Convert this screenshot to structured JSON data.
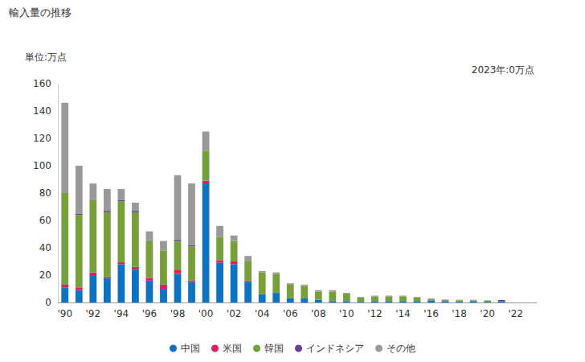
{
  "chart_data": {
    "type": "bar",
    "title": "輸入量の推移",
    "subtitle": "単位:万点",
    "annotations": [
      "2023年:0万点"
    ],
    "stacked": true,
    "grid": false,
    "legend": "bottom",
    "categories": [
      "'90",
      null,
      "'92",
      null,
      "'94",
      null,
      "'96",
      null,
      "'98",
      null,
      "'00",
      null,
      "'02",
      null,
      "'04",
      null,
      "'06",
      null,
      "'08",
      null,
      "'10",
      null,
      "'12",
      null,
      "'14",
      null,
      "'16",
      null,
      "'18",
      null,
      "'20",
      null,
      "'22",
      null
    ],
    "ylim": [
      0,
      160
    ],
    "yticks": [
      0,
      20,
      40,
      60,
      80,
      100,
      120,
      140,
      160
    ],
    "series": [
      {
        "name": "中国",
        "color": "#0b72c4",
        "values": [
          11,
          9,
          20,
          18,
          28,
          24,
          16,
          10,
          21,
          15,
          87,
          29,
          28,
          15,
          6,
          7,
          3,
          3,
          2,
          1,
          1,
          0.5,
          1,
          1,
          1,
          1,
          1.5,
          1,
          0.5,
          1,
          0.5,
          1,
          0,
          0
        ]
      },
      {
        "name": "米国",
        "color": "#e0205a",
        "values": [
          2,
          2,
          2,
          1,
          1.5,
          2,
          2,
          3,
          3,
          1,
          2,
          2,
          2,
          1,
          0,
          0,
          0,
          0,
          0,
          0,
          0,
          0,
          0,
          0,
          0,
          0,
          0,
          0,
          0,
          0,
          0,
          0,
          0,
          0
        ]
      },
      {
        "name": "韓国",
        "color": "#77a03a",
        "values": [
          67,
          53,
          53,
          47,
          44.5,
          40,
          27,
          25,
          21,
          25,
          22,
          17,
          15,
          14,
          16,
          14,
          10,
          9,
          6,
          7,
          5.5,
          3,
          3.5,
          3.5,
          3.5,
          2.5,
          1,
          0.5,
          1,
          0.5,
          1,
          0,
          0,
          0
        ]
      },
      {
        "name": "インドネシア",
        "color": "#6a3d9a",
        "values": [
          0,
          1,
          0.5,
          1,
          1,
          1,
          0.5,
          0,
          1,
          1,
          0,
          0,
          0,
          0,
          0,
          0,
          0,
          0,
          0,
          0,
          0,
          0,
          0,
          0,
          0,
          0,
          0,
          0.5,
          0,
          0,
          0,
          0.8,
          0,
          0
        ]
      },
      {
        "name": "その他",
        "color": "#999999",
        "values": [
          66,
          35,
          11.5,
          16,
          8,
          6,
          6.5,
          7,
          47,
          45,
          14,
          8,
          4,
          4,
          1,
          1,
          1,
          1,
          1,
          1,
          0.5,
          0.5,
          0.5,
          0.5,
          0.5,
          0.5,
          0.5,
          0,
          0.5,
          0.5,
          0,
          0,
          0,
          0
        ]
      }
    ]
  }
}
